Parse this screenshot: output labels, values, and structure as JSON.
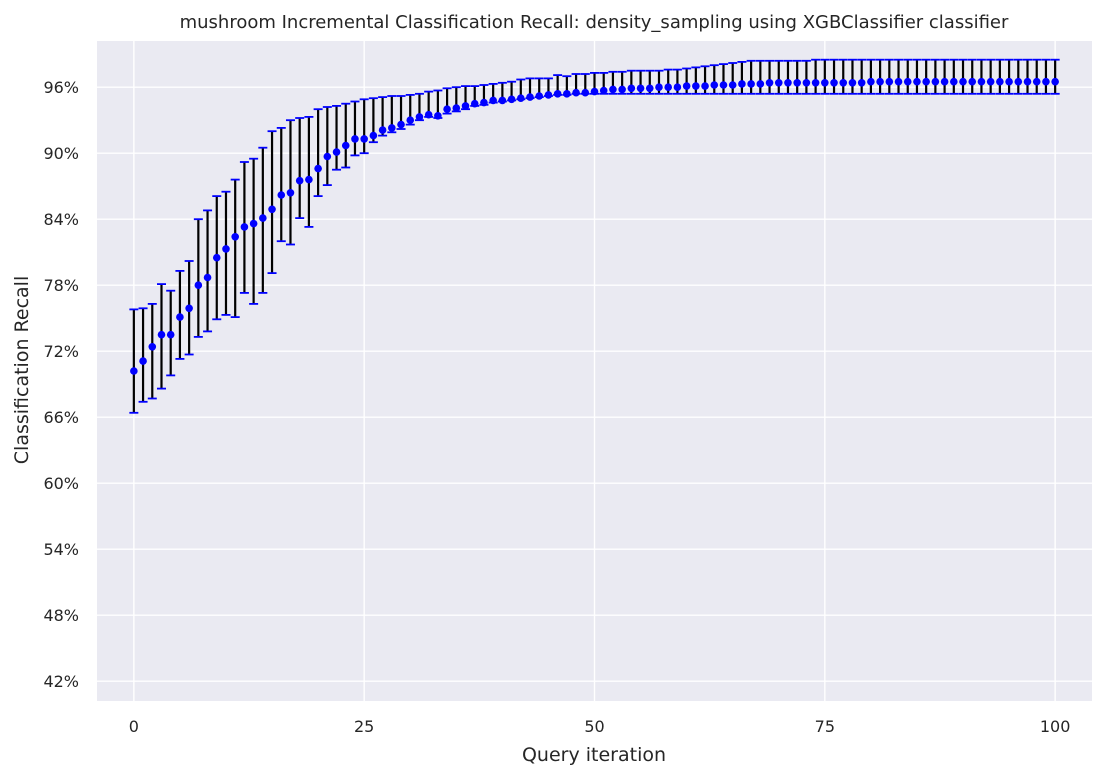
{
  "chart_data": {
    "type": "scatter",
    "title": "mushroom Incremental Classification Recall: density_sampling using XGBClassifier classifier",
    "xlabel": "Query iteration",
    "ylabel": "Classification Recall",
    "xlim": [
      -4,
      104
    ],
    "ylim": [
      40.2,
      100.2
    ],
    "xticks": [
      0,
      25,
      50,
      75,
      100
    ],
    "yticks": [
      42,
      48,
      54,
      60,
      66,
      72,
      78,
      84,
      90,
      96
    ],
    "ytick_labels": [
      "42%",
      "48%",
      "54%",
      "60%",
      "66%",
      "72%",
      "78%",
      "84%",
      "90%",
      "96%"
    ],
    "xtick_labels": [
      "0",
      "25",
      "50",
      "75",
      "100"
    ],
    "grid": true,
    "colors": {
      "background": "#eaeaf2",
      "grid": "#ffffff",
      "marker": "#0000ff",
      "error_line": "#000000",
      "cap": "#0000ff"
    },
    "series": [
      {
        "x": [
          0,
          1,
          2,
          3,
          4,
          5,
          6,
          7,
          8,
          9,
          10,
          11,
          12,
          13,
          14,
          15,
          16,
          17,
          18,
          19,
          20,
          21,
          22,
          23,
          24,
          25,
          26,
          27,
          28,
          29,
          30,
          31,
          32,
          33,
          34,
          35,
          36,
          37,
          38,
          39,
          40,
          41,
          42,
          43,
          44,
          45,
          46,
          47,
          48,
          49,
          50,
          51,
          52,
          53,
          54,
          55,
          56,
          57,
          58,
          59,
          60,
          61,
          62,
          63,
          64,
          65,
          66,
          67,
          68,
          69,
          70,
          71,
          72,
          73,
          74,
          75,
          76,
          77,
          78,
          79,
          80,
          81,
          82,
          83,
          84,
          85,
          86,
          87,
          88,
          89,
          90,
          91,
          92,
          93,
          94,
          95,
          96,
          97,
          98,
          99,
          100
        ],
        "y": [
          70.2,
          71.1,
          72.4,
          73.5,
          73.5,
          75.1,
          75.9,
          78.0,
          78.7,
          80.5,
          81.3,
          82.4,
          83.3,
          83.6,
          84.1,
          84.9,
          86.2,
          86.4,
          87.5,
          87.6,
          88.6,
          89.7,
          90.1,
          90.7,
          91.3,
          91.3,
          91.6,
          92.1,
          92.3,
          92.6,
          93.0,
          93.3,
          93.5,
          93.4,
          94.0,
          94.1,
          94.3,
          94.5,
          94.6,
          94.8,
          94.8,
          94.9,
          95.0,
          95.1,
          95.2,
          95.3,
          95.4,
          95.4,
          95.5,
          95.5,
          95.6,
          95.7,
          95.8,
          95.8,
          95.9,
          95.9,
          95.9,
          96.0,
          96.0,
          96.0,
          96.1,
          96.1,
          96.1,
          96.2,
          96.2,
          96.2,
          96.3,
          96.3,
          96.3,
          96.4,
          96.4,
          96.4,
          96.4,
          96.4,
          96.4,
          96.4,
          96.4,
          96.4,
          96.4,
          96.4,
          96.5,
          96.5,
          96.5,
          96.5,
          96.5,
          96.5,
          96.5,
          96.5,
          96.5,
          96.5,
          96.5,
          96.5,
          96.5,
          96.5,
          96.5,
          96.5,
          96.5,
          96.5,
          96.5,
          96.5,
          96.5
        ],
        "err_low": [
          66.4,
          67.4,
          67.7,
          68.6,
          69.8,
          71.3,
          71.7,
          73.3,
          73.8,
          74.9,
          75.3,
          75.1,
          77.3,
          76.3,
          77.3,
          79.1,
          82.0,
          81.7,
          84.1,
          83.3,
          86.1,
          87.1,
          88.5,
          88.7,
          89.8,
          90.0,
          91.0,
          91.6,
          91.9,
          92.2,
          92.6,
          93.0,
          93.3,
          93.2,
          93.6,
          93.8,
          94.0,
          94.3,
          94.4,
          94.6,
          94.7,
          94.8,
          94.9,
          95.0,
          95.1,
          95.2,
          95.3,
          95.3,
          95.4,
          95.4,
          95.4,
          95.4,
          95.4,
          95.4,
          95.4,
          95.4,
          95.4,
          95.4,
          95.4,
          95.4,
          95.4,
          95.4,
          95.4,
          95.4,
          95.4,
          95.4,
          95.4,
          95.4,
          95.4,
          95.4,
          95.4,
          95.4,
          95.4,
          95.4,
          95.4,
          95.4,
          95.4,
          95.4,
          95.4,
          95.4,
          95.4,
          95.4,
          95.4,
          95.4,
          95.4,
          95.4,
          95.4,
          95.4,
          95.4,
          95.4,
          95.4,
          95.4,
          95.4,
          95.4,
          95.4,
          95.4,
          95.4,
          95.4,
          95.4,
          95.4,
          95.4
        ],
        "err_high": [
          75.8,
          75.9,
          76.3,
          78.1,
          77.5,
          79.3,
          80.2,
          84.0,
          84.8,
          86.1,
          86.5,
          87.6,
          89.2,
          89.5,
          90.5,
          92.0,
          92.3,
          93.0,
          93.2,
          93.3,
          94.0,
          94.2,
          94.3,
          94.5,
          94.7,
          94.9,
          95.0,
          95.1,
          95.2,
          95.2,
          95.3,
          95.4,
          95.6,
          95.7,
          95.9,
          96.0,
          96.1,
          96.1,
          96.2,
          96.3,
          96.4,
          96.5,
          96.7,
          96.8,
          96.8,
          96.8,
          97.1,
          97.0,
          97.2,
          97.2,
          97.3,
          97.3,
          97.4,
          97.4,
          97.5,
          97.5,
          97.5,
          97.5,
          97.6,
          97.6,
          97.7,
          97.8,
          97.9,
          98.0,
          98.1,
          98.2,
          98.3,
          98.4,
          98.4,
          98.4,
          98.4,
          98.4,
          98.4,
          98.4,
          98.5,
          98.5,
          98.5,
          98.5,
          98.5,
          98.5,
          98.5,
          98.5,
          98.5,
          98.5,
          98.5,
          98.5,
          98.5,
          98.5,
          98.5,
          98.5,
          98.5,
          98.5,
          98.5,
          98.5,
          98.5,
          98.5,
          98.5,
          98.5,
          98.5,
          98.5,
          98.5
        ]
      }
    ]
  }
}
